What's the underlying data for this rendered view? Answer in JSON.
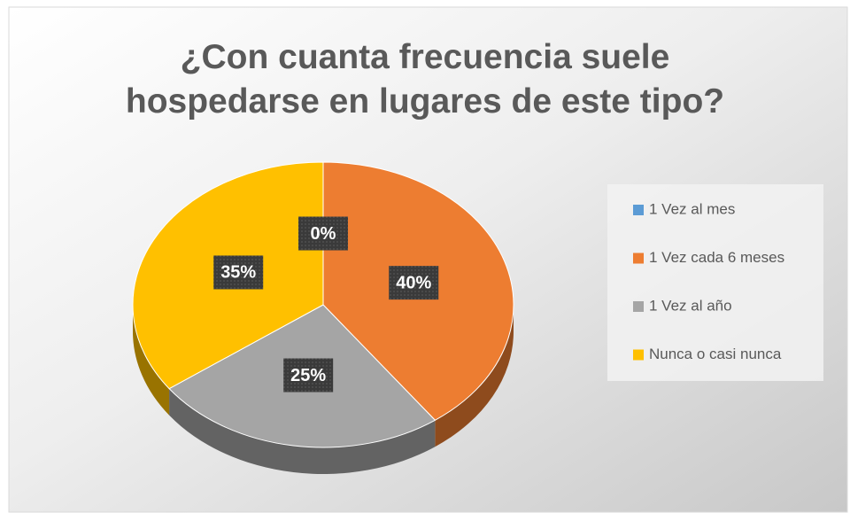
{
  "chart_data": {
    "type": "pie",
    "title": "¿Con cuanta frecuencia suele hospedarse en lugares de este tipo?",
    "categories": [
      "1 Vez al mes",
      "1 Vez cada 6 meses",
      "1 Vez al año",
      "Nunca o casi nunca"
    ],
    "values": [
      0,
      40,
      25,
      35
    ],
    "value_labels": [
      "0%",
      "40%",
      "25%",
      "35%"
    ],
    "colors": [
      "#5b9bd5",
      "#ed7d31",
      "#a5a5a5",
      "#ffc000"
    ],
    "legend": "right"
  }
}
